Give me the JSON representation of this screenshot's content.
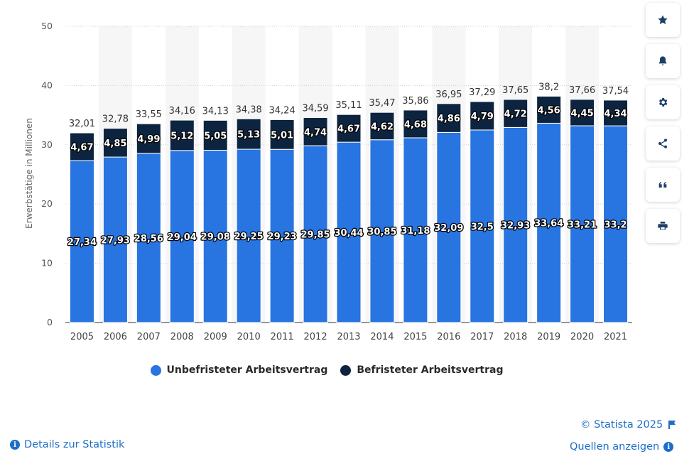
{
  "chart_data": {
    "type": "bar",
    "stacked": true,
    "ylabel": "Erwerbstätige in Millionen",
    "ylim": [
      0,
      50
    ],
    "yticks": [
      "0",
      "10",
      "20",
      "30",
      "40",
      "50"
    ],
    "categories": [
      "2005",
      "2006",
      "2007",
      "2008",
      "2009",
      "2010",
      "2011",
      "2012",
      "2013",
      "2014",
      "2015",
      "2016",
      "2017",
      "2018",
      "2019",
      "2020",
      "2021"
    ],
    "series": [
      {
        "name": "Unbefristeter Arbeitsvertrag",
        "color": "#2874e0",
        "values": [
          27.34,
          27.93,
          28.56,
          29.04,
          29.08,
          29.25,
          29.23,
          29.85,
          30.44,
          30.85,
          31.18,
          32.09,
          32.5,
          32.93,
          33.64,
          33.21,
          33.2
        ],
        "labels": [
          "27,34",
          "27,93",
          "28,56",
          "29,04",
          "29,08",
          "29,25",
          "29,23",
          "29,85",
          "30,44",
          "30,85",
          "31,18",
          "32,09",
          "32,5",
          "32,93",
          "33,64",
          "33,21",
          "33,2"
        ]
      },
      {
        "name": "Befristeter Arbeitsvertrag",
        "color": "#0d2440",
        "values": [
          4.67,
          4.85,
          4.99,
          5.12,
          5.05,
          5.13,
          5.01,
          4.74,
          4.67,
          4.62,
          4.68,
          4.86,
          4.79,
          4.72,
          4.56,
          4.45,
          4.34
        ],
        "labels": [
          "4,67",
          "4,85",
          "4,99",
          "5,12",
          "5,05",
          "5,13",
          "5,01",
          "4,74",
          "4,67",
          "4,62",
          "4,68",
          "4,86",
          "4,79",
          "4,72",
          "4,56",
          "4,45",
          "4,34"
        ]
      }
    ],
    "totals": [
      "32,01",
      "32,78",
      "33,55",
      "34,16",
      "34,13",
      "34,38",
      "34,24",
      "34,59",
      "35,11",
      "35,47",
      "35,86",
      "36,95",
      "37,29",
      "37,65",
      "38,2",
      "37,66",
      "37,54"
    ],
    "grid": true,
    "legend_position": "bottom"
  },
  "legend": {
    "unbefristet": "Unbefristeter Arbeitsvertrag",
    "befristet": "Befristeter Arbeitsvertrag"
  },
  "footer": {
    "copyright": "© Statista 2025",
    "details": "Details zur Statistik",
    "sources": "Quellen anzeigen"
  },
  "toolbar": [
    "star-icon",
    "bell-icon",
    "gear-icon",
    "share-icon",
    "quote-icon",
    "print-icon"
  ],
  "colors": {
    "link": "#1d6ec7",
    "icon": "#1d3f66"
  }
}
